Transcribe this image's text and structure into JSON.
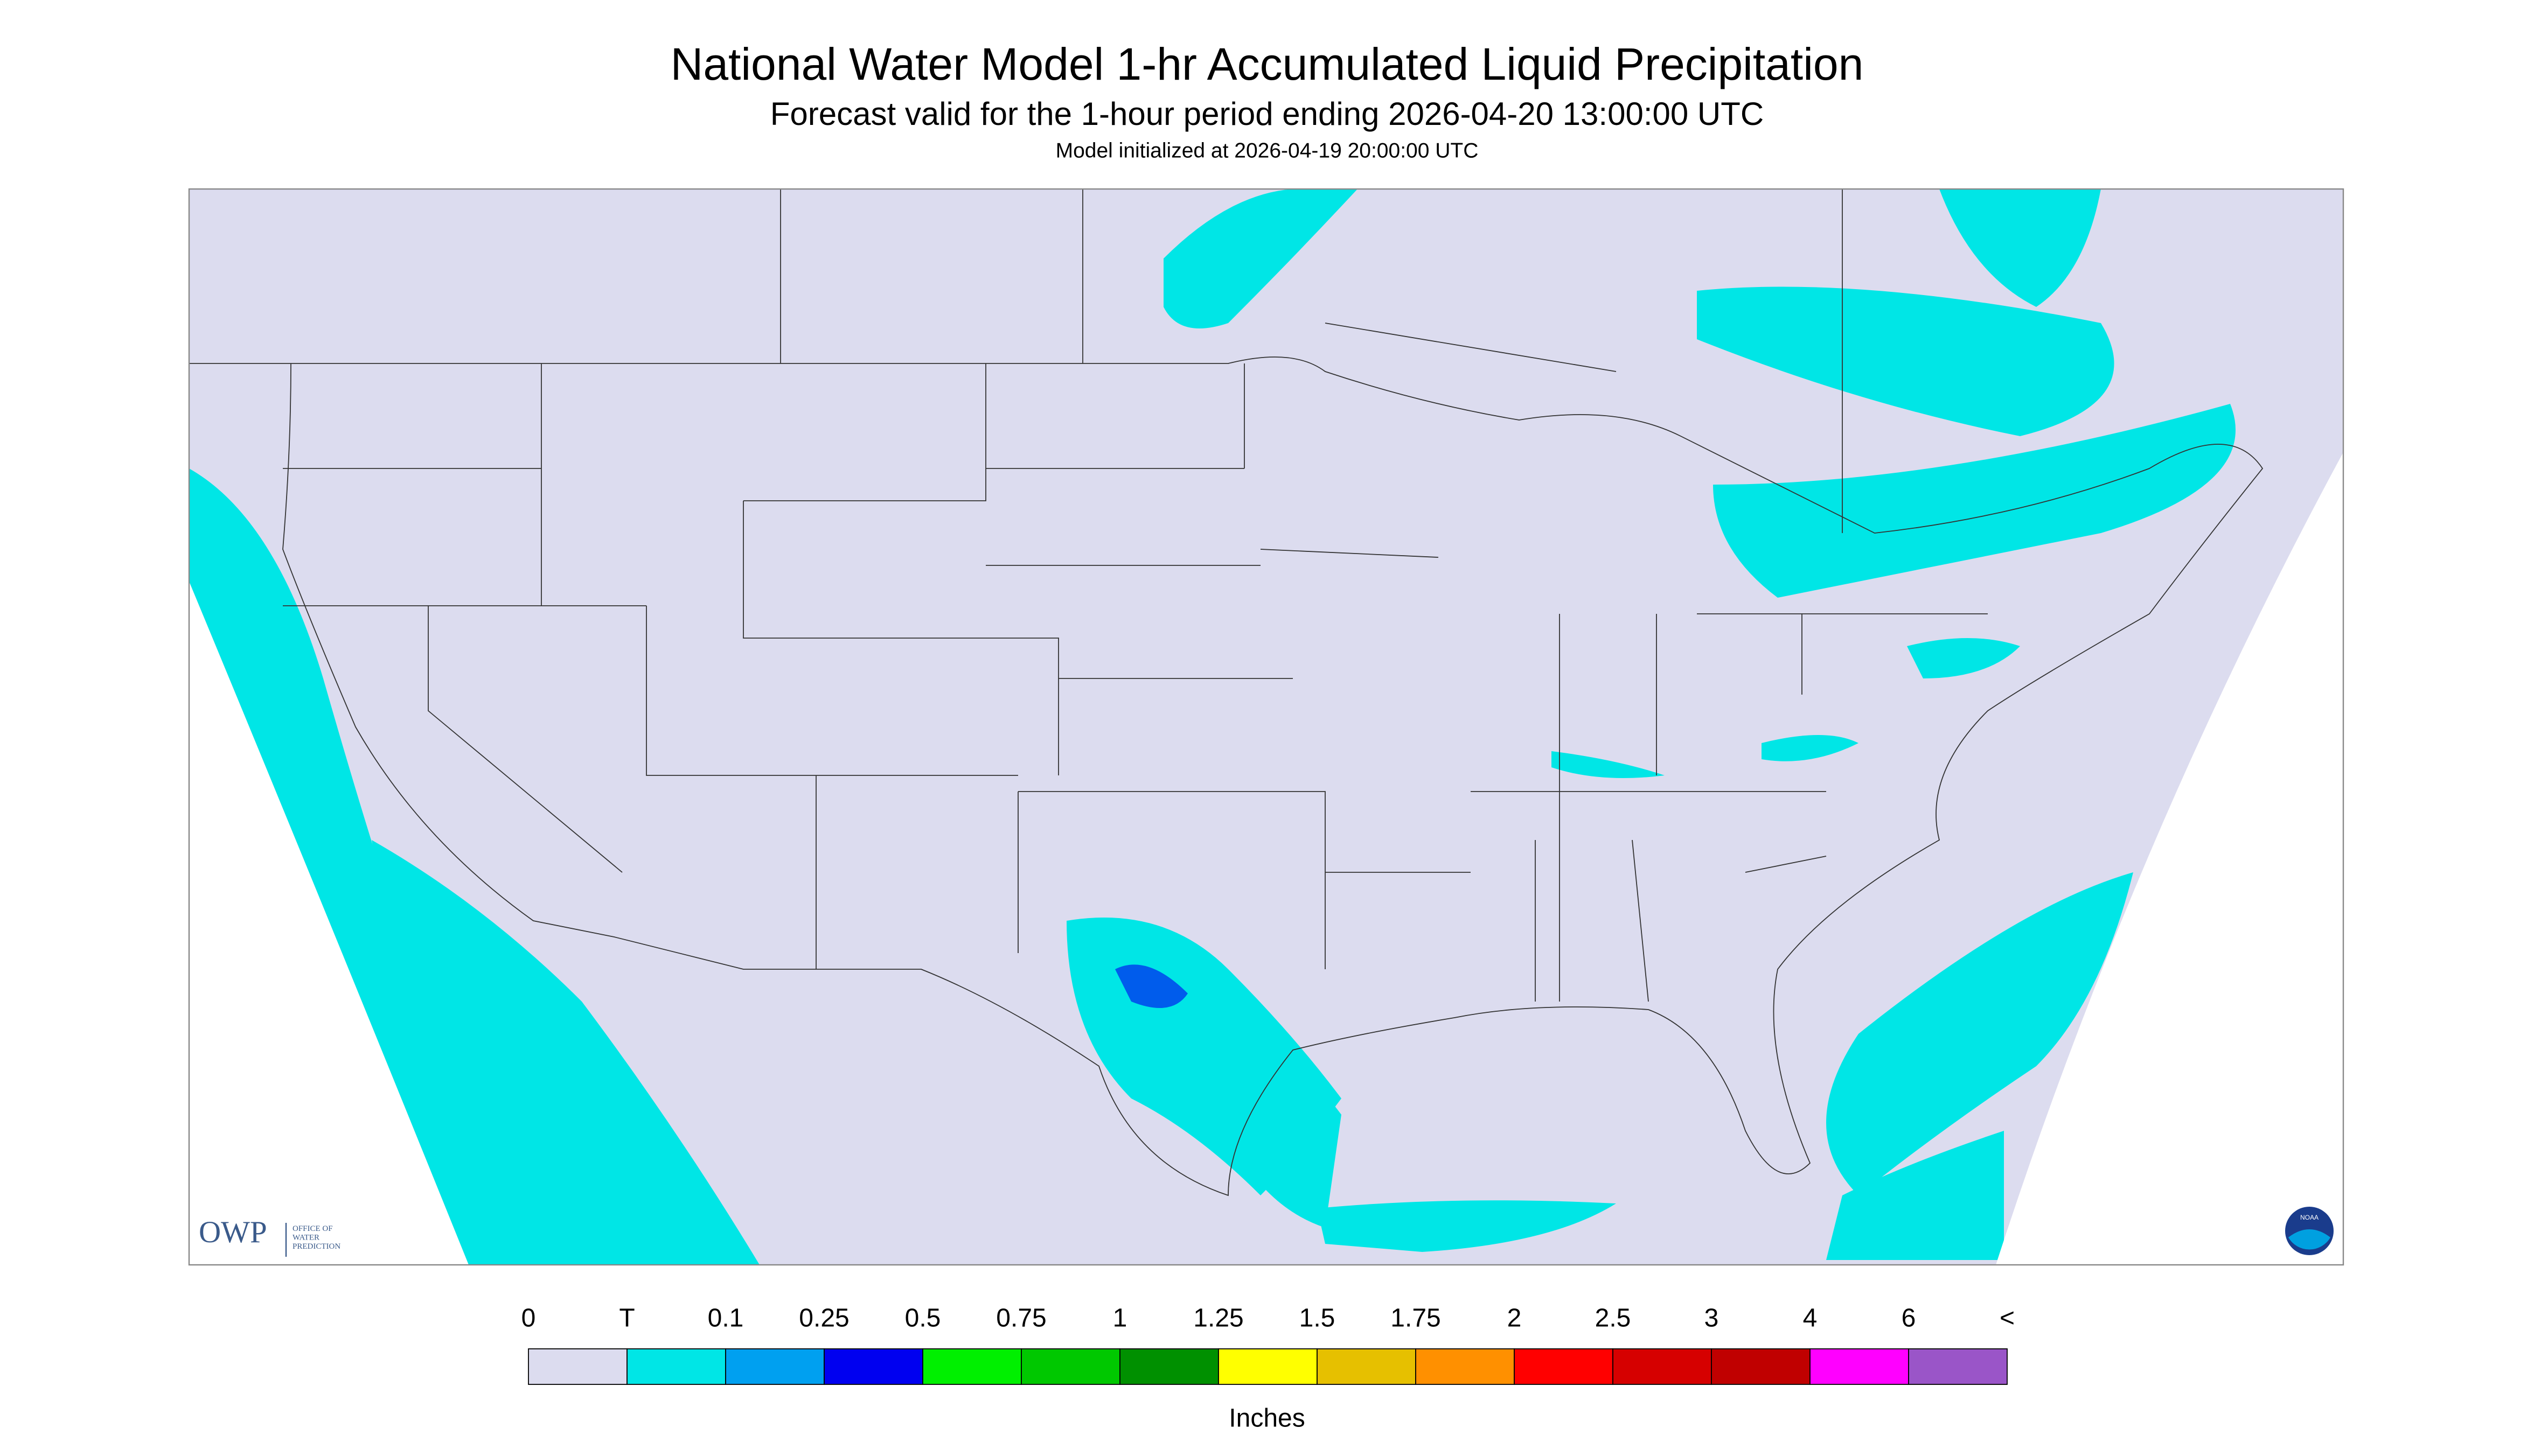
{
  "header": {
    "title": "National Water Model 1-hr Accumulated Liquid Precipitation",
    "subtitle": "Forecast valid for the 1-hour period ending 2026-04-20 13:00:00 UTC",
    "init": "Model initialized at 2026-04-19 20:00:00 UTC"
  },
  "legend": {
    "labels": [
      "0",
      "T",
      "0.1",
      "0.25",
      "0.5",
      "0.75",
      "1",
      "1.25",
      "1.5",
      "1.75",
      "2",
      "2.5",
      "3",
      "4",
      "6",
      "<"
    ],
    "colors": [
      "#dcdcef",
      "#00e6e6",
      "#00a0f0",
      "#0000f0",
      "#00f000",
      "#00c800",
      "#009000",
      "#ffff00",
      "#e6c000",
      "#ff9000",
      "#ff0000",
      "#d60000",
      "#c00000",
      "#ff00ff",
      "#9a55c8"
    ],
    "unit": "Inches"
  },
  "logo": {
    "owp": "OWP",
    "office": [
      "OFFICE OF",
      "WATER",
      "PREDICTION"
    ],
    "noaa": "NOAA"
  }
}
